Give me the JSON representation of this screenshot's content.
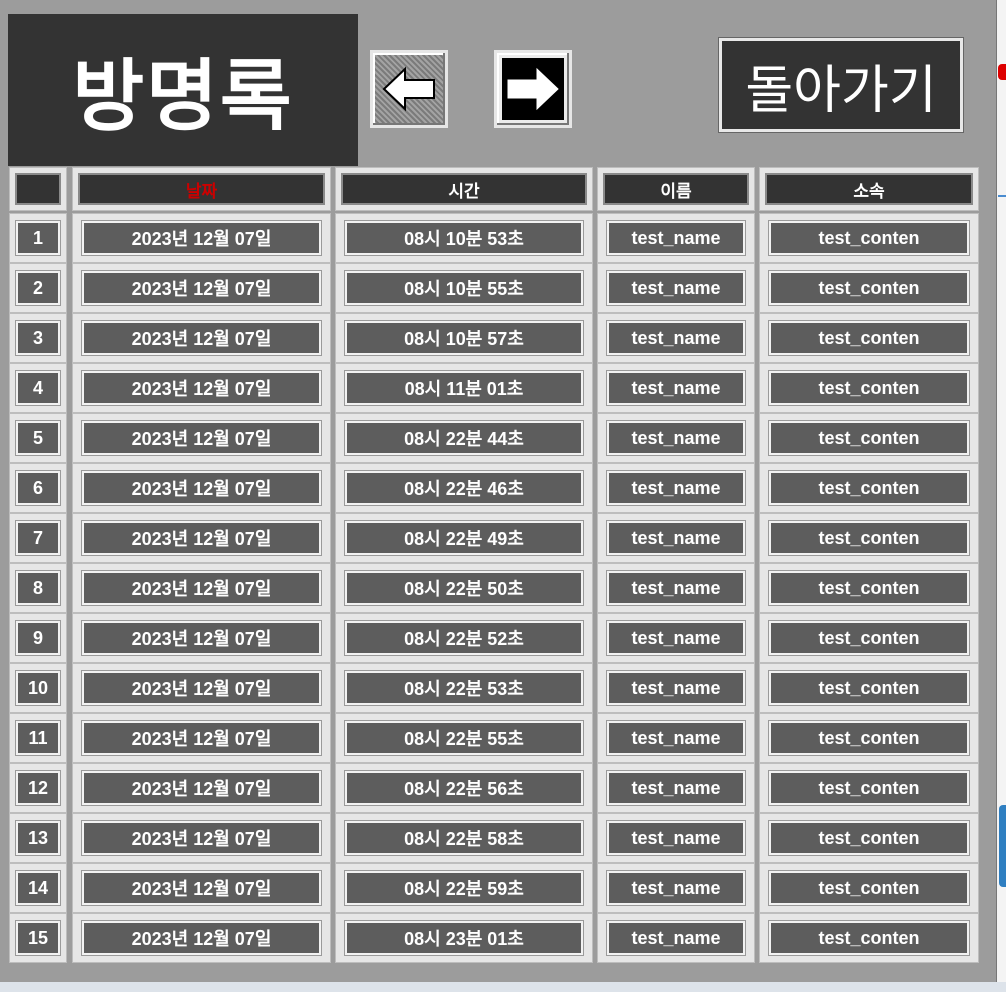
{
  "header": {
    "title": "방명록",
    "back_label": "돌아가기"
  },
  "columns": [
    "",
    "날짜",
    "시간",
    "이름",
    "소속"
  ],
  "colors": {
    "date_header_text": "#cc0000",
    "header_bg": "#333333",
    "cell_bg": "#5d5d5d",
    "window_bg": "#9c9c9c"
  },
  "rows": [
    {
      "num": "1",
      "date": "2023년 12월 07일",
      "time": "08시 10분 53초",
      "name": "test_name",
      "org": "test_conten"
    },
    {
      "num": "2",
      "date": "2023년 12월 07일",
      "time": "08시 10분 55초",
      "name": "test_name",
      "org": "test_conten"
    },
    {
      "num": "3",
      "date": "2023년 12월 07일",
      "time": "08시 10분 57초",
      "name": "test_name",
      "org": "test_conten"
    },
    {
      "num": "4",
      "date": "2023년 12월 07일",
      "time": "08시 11분 01초",
      "name": "test_name",
      "org": "test_conten"
    },
    {
      "num": "5",
      "date": "2023년 12월 07일",
      "time": "08시 22분 44초",
      "name": "test_name",
      "org": "test_conten"
    },
    {
      "num": "6",
      "date": "2023년 12월 07일",
      "time": "08시 22분 46초",
      "name": "test_name",
      "org": "test_conten"
    },
    {
      "num": "7",
      "date": "2023년 12월 07일",
      "time": "08시 22분 49초",
      "name": "test_name",
      "org": "test_conten"
    },
    {
      "num": "8",
      "date": "2023년 12월 07일",
      "time": "08시 22분 50초",
      "name": "test_name",
      "org": "test_conten"
    },
    {
      "num": "9",
      "date": "2023년 12월 07일",
      "time": "08시 22분 52초",
      "name": "test_name",
      "org": "test_conten"
    },
    {
      "num": "10",
      "date": "2023년 12월 07일",
      "time": "08시 22분 53초",
      "name": "test_name",
      "org": "test_conten"
    },
    {
      "num": "11",
      "date": "2023년 12월 07일",
      "time": "08시 22분 55초",
      "name": "test_name",
      "org": "test_conten"
    },
    {
      "num": "12",
      "date": "2023년 12월 07일",
      "time": "08시 22분 56초",
      "name": "test_name",
      "org": "test_conten"
    },
    {
      "num": "13",
      "date": "2023년 12월 07일",
      "time": "08시 22분 58초",
      "name": "test_name",
      "org": "test_conten"
    },
    {
      "num": "14",
      "date": "2023년 12월 07일",
      "time": "08시 22분 59초",
      "name": "test_name",
      "org": "test_conten"
    },
    {
      "num": "15",
      "date": "2023년 12월 07일",
      "time": "08시 23분 01초",
      "name": "test_name",
      "org": "test_conten"
    }
  ]
}
